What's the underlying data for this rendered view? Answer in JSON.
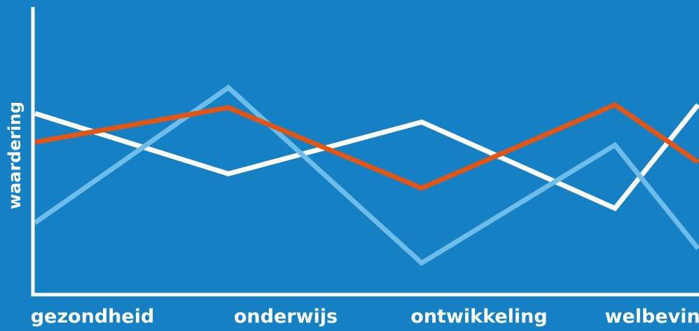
{
  "colors": {
    "background": "#1580c4",
    "axis": "#ffffff"
  },
  "chart_data": {
    "type": "line",
    "title": "",
    "xlabel": "",
    "ylabel": "waardering",
    "categories": [
      "gezondheid",
      "onderwijs",
      "ontwikkeling",
      "welbevinden"
    ],
    "x": [
      0,
      1,
      2,
      3,
      3.43
    ],
    "ylim": [
      0,
      10
    ],
    "grid": false,
    "series": [
      {
        "color": "#ffffff",
        "values": [
          6.3,
          4.2,
          6.0,
          3.0,
          6.6
        ]
      },
      {
        "color": "#6ebde9",
        "values": [
          2.5,
          7.2,
          1.1,
          5.2,
          1.6
        ]
      },
      {
        "color": "#e35514",
        "values": [
          5.3,
          6.5,
          3.7,
          6.6,
          4.6
        ]
      }
    ]
  }
}
